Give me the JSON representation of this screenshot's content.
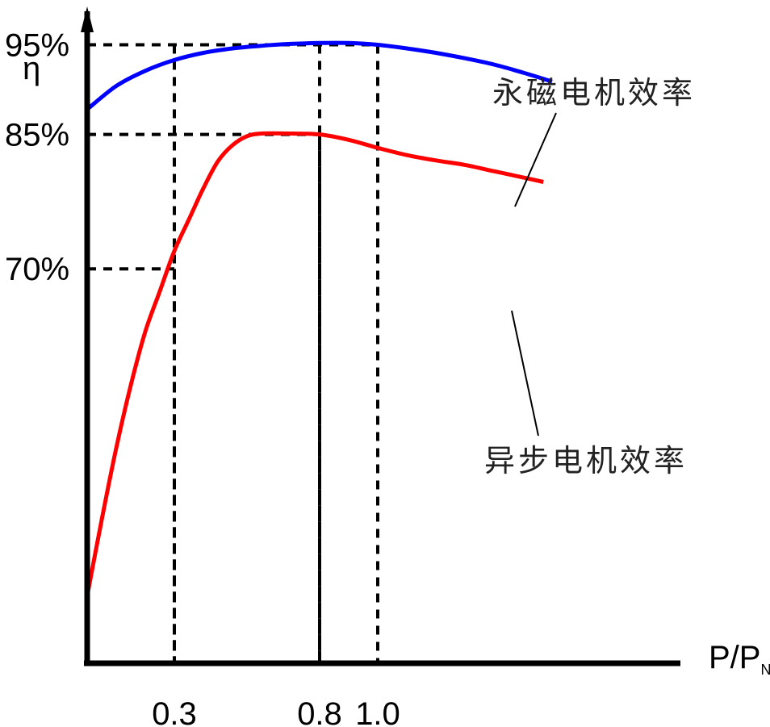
{
  "chart_data": {
    "type": "line",
    "title": "",
    "xlabel": "P/P",
    "xlabel_sub": "N",
    "ylabel": "η",
    "x_ticks": [
      {
        "value": 0.3,
        "label": "0.3"
      },
      {
        "value": 0.8,
        "label": "0.8"
      },
      {
        "value": 1.0,
        "label": "1.0"
      }
    ],
    "y_ticks": [
      {
        "value": 95,
        "label": "95%"
      },
      {
        "value": 85,
        "label": "85%"
      },
      {
        "value": 70,
        "label": "70%"
      }
    ],
    "xlim": [
      0,
      2.0
    ],
    "ylim": [
      26,
      100
    ],
    "reference_lines": [
      {
        "x": 0.3,
        "y": 70
      },
      {
        "x": 0.3,
        "y": 95
      },
      {
        "x": 0.8,
        "y": 95
      },
      {
        "x": 0.8,
        "y": 85
      },
      {
        "x": 1.0,
        "y": 95
      }
    ],
    "series": [
      {
        "name": "永磁电机效率",
        "color": "#0000ff",
        "points": [
          [
            0,
            87.8
          ],
          [
            0.1,
            90.4
          ],
          [
            0.2,
            92.1
          ],
          [
            0.3,
            93.3
          ],
          [
            0.4,
            94.1
          ],
          [
            0.5,
            94.6
          ],
          [
            0.6,
            94.9
          ],
          [
            0.7,
            95.1
          ],
          [
            0.8,
            95.2
          ],
          [
            0.9,
            95.2
          ],
          [
            1.0,
            95.0
          ],
          [
            1.1,
            94.6
          ],
          [
            1.2,
            94.1
          ],
          [
            1.3,
            93.5
          ],
          [
            1.4,
            92.8
          ],
          [
            1.5,
            91.9
          ],
          [
            1.6,
            90.9
          ]
        ]
      },
      {
        "name": "异步电机效率",
        "color": "#ff0000",
        "points": [
          [
            0,
            33.5
          ],
          [
            0.05,
            42
          ],
          [
            0.1,
            50
          ],
          [
            0.15,
            57
          ],
          [
            0.2,
            63
          ],
          [
            0.25,
            67.5
          ],
          [
            0.3,
            72
          ],
          [
            0.35,
            75.5
          ],
          [
            0.4,
            79
          ],
          [
            0.45,
            82
          ],
          [
            0.5,
            83.8
          ],
          [
            0.55,
            84.8
          ],
          [
            0.6,
            85.1
          ],
          [
            0.7,
            85.1
          ],
          [
            0.8,
            85.0
          ],
          [
            0.9,
            84.4
          ],
          [
            1.0,
            83.5
          ],
          [
            1.1,
            82.7
          ],
          [
            1.2,
            82.1
          ],
          [
            1.3,
            81.6
          ],
          [
            1.4,
            80.9
          ],
          [
            1.5,
            80.2
          ],
          [
            1.57,
            79.7
          ]
        ]
      }
    ]
  }
}
